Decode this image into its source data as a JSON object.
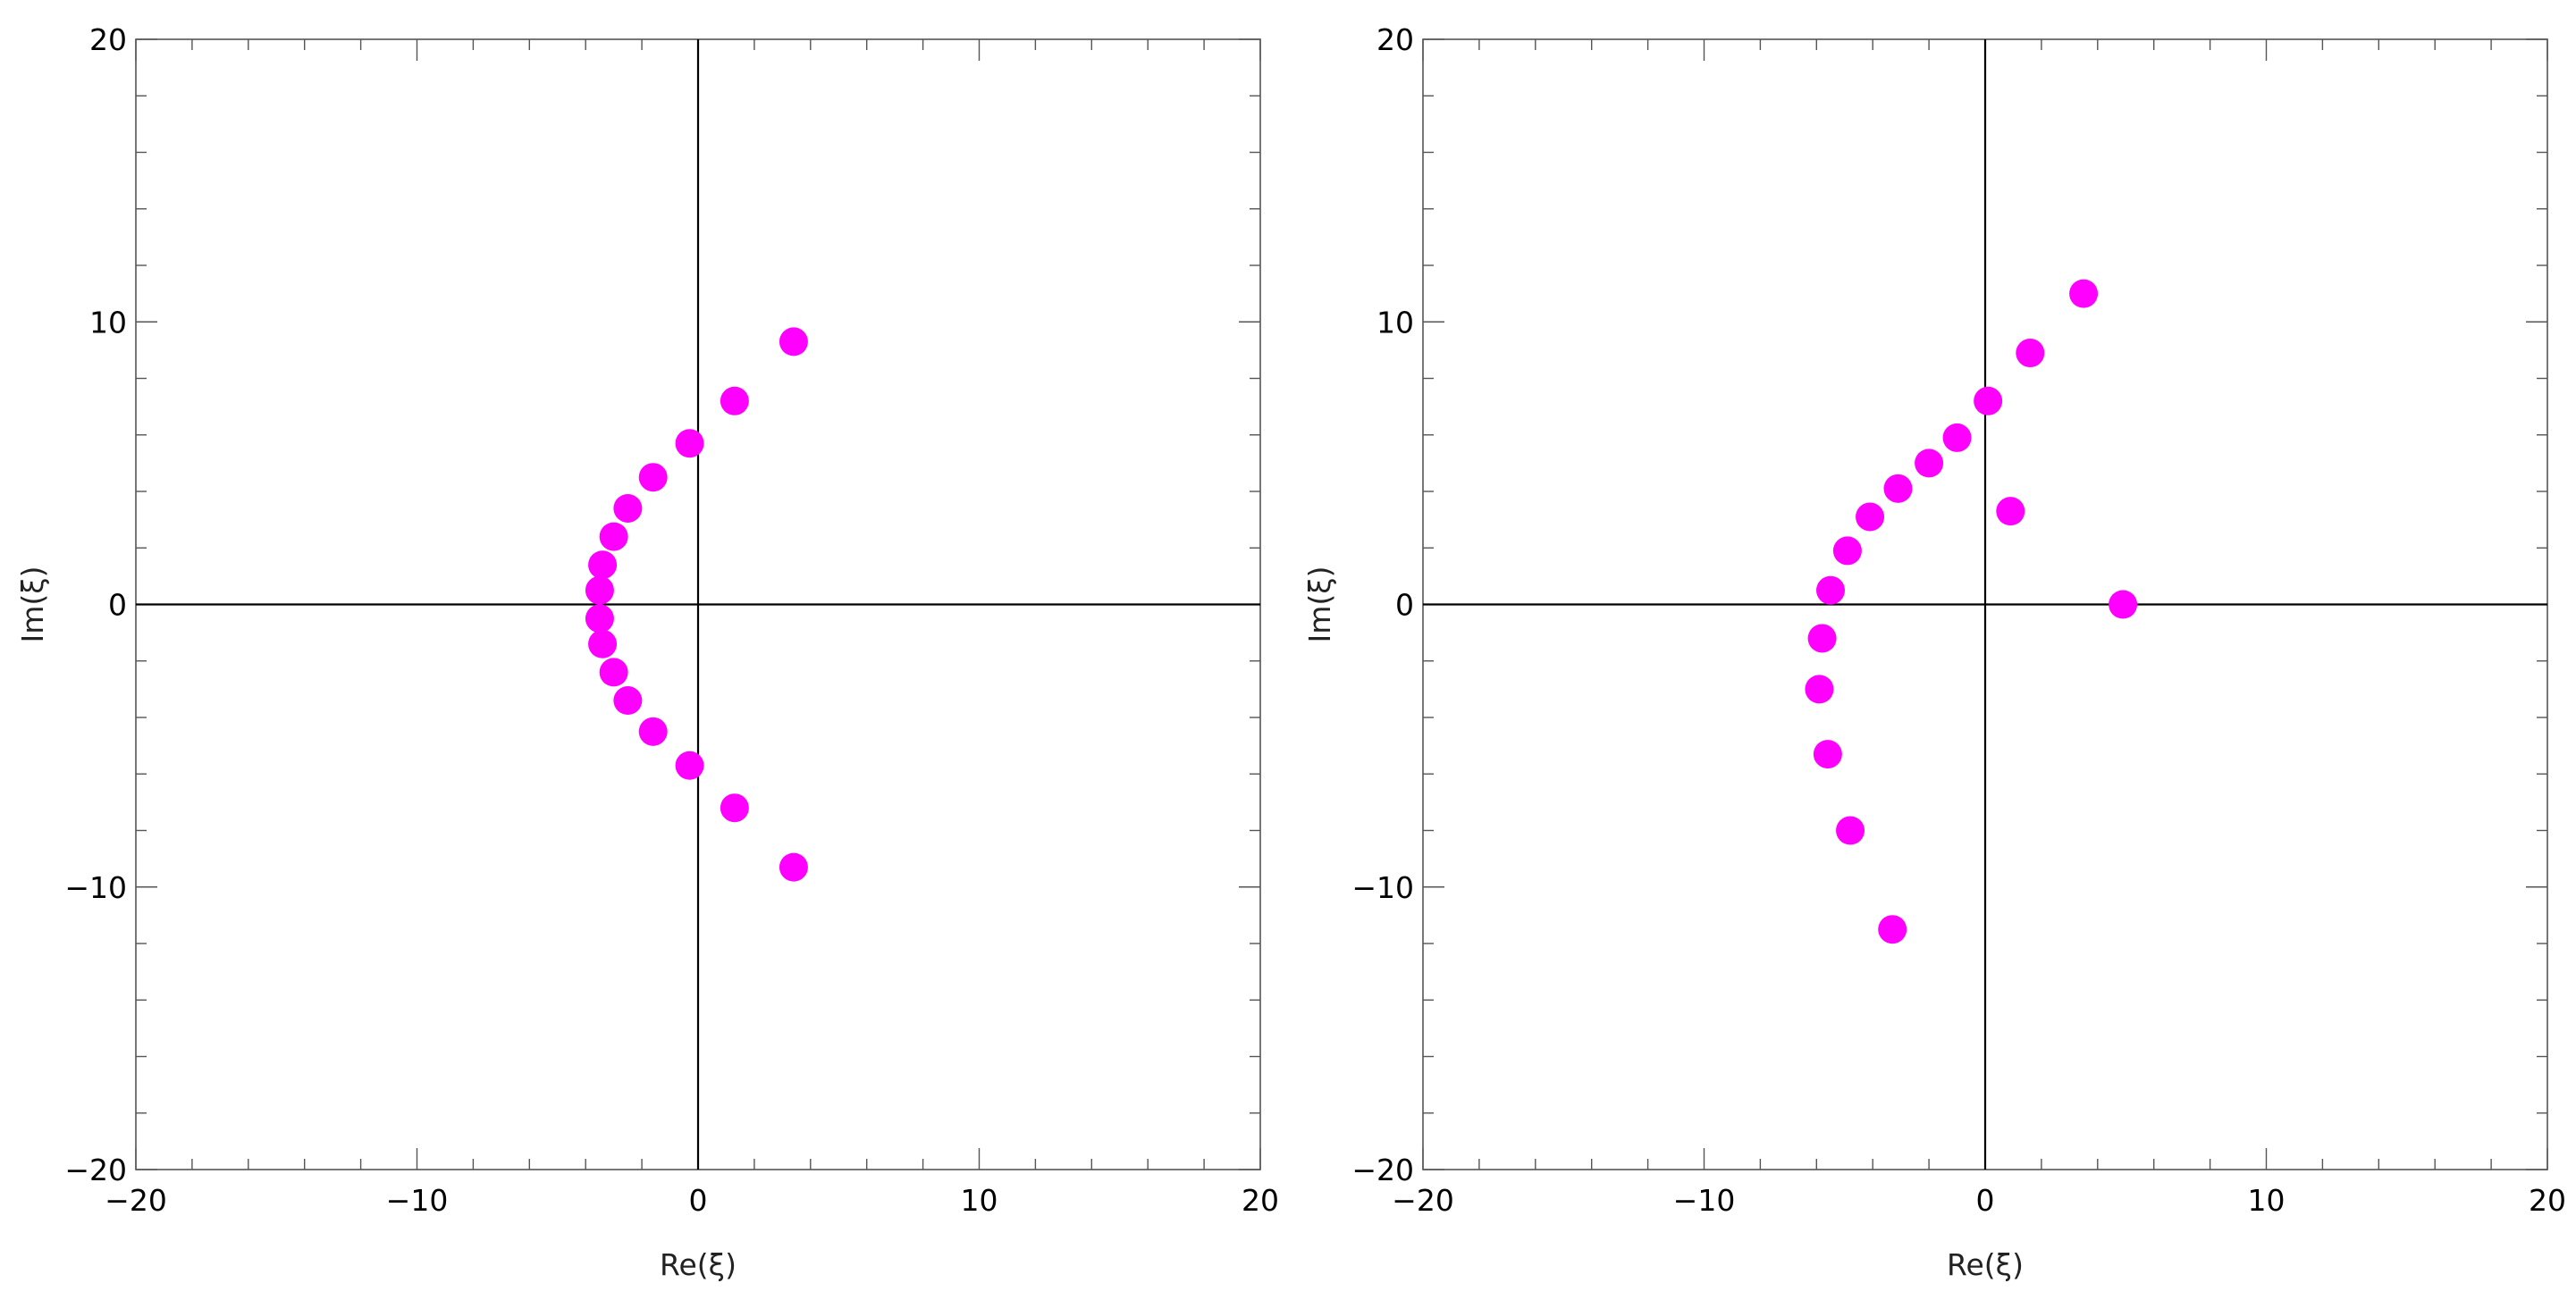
{
  "point_color": "#ff00ff",
  "chart_data": [
    {
      "type": "scatter",
      "xlabel": "Re(ξ)",
      "ylabel": "Im(ξ)",
      "xlim": [
        -20,
        20
      ],
      "ylim": [
        -20,
        20
      ],
      "xticks": [
        -20,
        -10,
        0,
        10,
        20
      ],
      "yticks": [
        -20,
        -10,
        0,
        10,
        20
      ],
      "xtick_labels": [
        "−20",
        "−10",
        "0",
        "10",
        "20"
      ],
      "ytick_labels": [
        "−20",
        "−10",
        "0",
        "10",
        "20"
      ],
      "grid": false,
      "points": [
        [
          3.4,
          9.3
        ],
        [
          1.3,
          7.2
        ],
        [
          -0.3,
          5.7
        ],
        [
          -1.6,
          4.5
        ],
        [
          -2.5,
          3.4
        ],
        [
          -3.0,
          2.4
        ],
        [
          -3.4,
          1.4
        ],
        [
          -3.5,
          0.5
        ],
        [
          -3.5,
          -0.5
        ],
        [
          -3.4,
          -1.4
        ],
        [
          -3.0,
          -2.4
        ],
        [
          -2.5,
          -3.4
        ],
        [
          -1.6,
          -4.5
        ],
        [
          -0.3,
          -5.7
        ],
        [
          1.3,
          -7.2
        ],
        [
          3.4,
          -9.3
        ]
      ]
    },
    {
      "type": "scatter",
      "xlabel": "Re(ξ)",
      "ylabel": "Im(ξ)",
      "xlim": [
        -20,
        20
      ],
      "ylim": [
        -20,
        20
      ],
      "xticks": [
        -20,
        -10,
        0,
        10,
        20
      ],
      "yticks": [
        -20,
        -10,
        0,
        10,
        20
      ],
      "xtick_labels": [
        "−20",
        "−10",
        "0",
        "10",
        "20"
      ],
      "ytick_labels": [
        "−20",
        "−10",
        "0",
        "10",
        "20"
      ],
      "grid": false,
      "points": [
        [
          3.5,
          11.0
        ],
        [
          1.6,
          8.9
        ],
        [
          0.1,
          7.2
        ],
        [
          -1.0,
          5.9
        ],
        [
          -2.0,
          5.0
        ],
        [
          -3.1,
          4.1
        ],
        [
          -4.1,
          3.1
        ],
        [
          -4.9,
          1.9
        ],
        [
          -5.5,
          0.5
        ],
        [
          -5.8,
          -1.2
        ],
        [
          -5.9,
          -3.0
        ],
        [
          -5.6,
          -5.3
        ],
        [
          -4.8,
          -8.0
        ],
        [
          -3.3,
          -11.5
        ],
        [
          0.9,
          3.3
        ],
        [
          4.9,
          0.0
        ]
      ]
    }
  ]
}
